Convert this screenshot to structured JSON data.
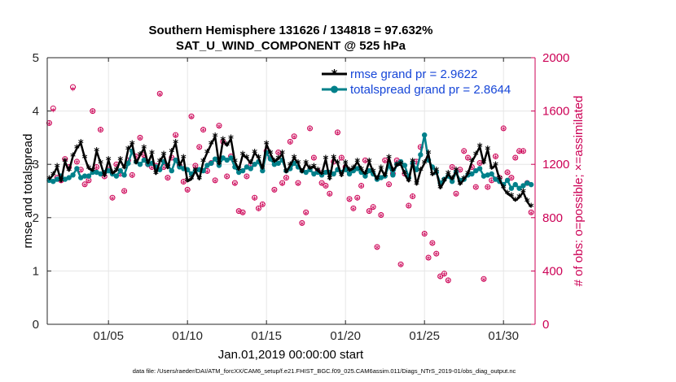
{
  "chart_data": {
    "type": "line",
    "title": "Southern Hemisphere 131626 / 134818 = 97.632%",
    "subtitle": "SAT_U_WIND_COMPONENT @ 525 hPa",
    "xlabel": "Jan.01,2019 00:00:00 start",
    "ylabel": "rmse and totalspread",
    "y2label": "# of obs: o=possible; ×=assimilated",
    "footer": "data file: /Users/raeder/DAI/ATM_forcXX/CAM6_setup/f.e21.FHIST_BGC.f09_025.CAM6assim.011/Diags_NTrS_2019-01/obs_diag_output.nc",
    "x_unit": "days since Jan.01,2019 00:00:00",
    "xlim": [
      0.125,
      31.0
    ],
    "ylim": [
      0,
      5
    ],
    "y2lim": [
      0,
      2000
    ],
    "x_ticks": [
      4,
      9,
      14,
      19,
      24,
      29
    ],
    "x_tick_labels": [
      "01/05",
      "01/10",
      "01/15",
      "01/20",
      "01/25",
      "01/30"
    ],
    "y_ticks": [
      0,
      1,
      2,
      3,
      4,
      5
    ],
    "y_tick_labels": [
      "0",
      "1",
      "2",
      "3",
      "4",
      "5"
    ],
    "y2_ticks": [
      0,
      400,
      800,
      1200,
      1600,
      2000
    ],
    "y2_tick_labels": [
      "0",
      "400",
      "800",
      "1200",
      "1600",
      "2000"
    ],
    "grid": true,
    "legend_position": "top-right",
    "colors": {
      "rmse": "#000000",
      "spread": "#00808a",
      "obs": "#cc0055",
      "legend_text": "#1646d8",
      "grid": "#e6e6e6",
      "axis": "#262626"
    },
    "x": [
      0.25,
      0.5,
      0.75,
      1.0,
      1.25,
      1.5,
      1.75,
      2.0,
      2.25,
      2.5,
      2.75,
      3.0,
      3.25,
      3.5,
      3.75,
      4.0,
      4.25,
      4.5,
      4.75,
      5.0,
      5.25,
      5.5,
      5.75,
      6.0,
      6.25,
      6.5,
      6.75,
      7.0,
      7.25,
      7.5,
      7.75,
      8.0,
      8.25,
      8.5,
      8.75,
      9.0,
      9.25,
      9.5,
      9.75,
      10.0,
      10.25,
      10.5,
      10.75,
      11.0,
      11.25,
      11.5,
      11.75,
      12.0,
      12.25,
      12.5,
      12.75,
      13.0,
      13.25,
      13.5,
      13.75,
      14.0,
      14.25,
      14.5,
      14.75,
      15.0,
      15.25,
      15.5,
      15.75,
      16.0,
      16.25,
      16.5,
      16.75,
      17.0,
      17.25,
      17.5,
      17.75,
      18.0,
      18.25,
      18.5,
      18.75,
      19.0,
      19.25,
      19.5,
      19.75,
      20.0,
      20.25,
      20.5,
      20.75,
      21.0,
      21.25,
      21.5,
      21.75,
      22.0,
      22.25,
      22.5,
      22.75,
      23.0,
      23.25,
      23.5,
      23.75,
      24.0,
      24.25,
      24.5,
      24.75,
      25.0,
      25.25,
      25.5,
      25.75,
      26.0,
      26.25,
      26.5,
      26.75,
      27.0,
      27.25,
      27.5,
      27.75,
      28.0,
      28.25,
      28.5,
      28.75,
      29.0,
      29.25,
      29.5,
      29.75,
      30.0,
      30.25,
      30.5,
      30.75
    ],
    "series": [
      {
        "name": "rmse grand pr = 2.9622",
        "axis": "left",
        "marker": "asterisk",
        "values": [
          2.72,
          2.8,
          2.95,
          2.68,
          3.05,
          2.88,
          3.15,
          3.3,
          3.4,
          3.12,
          2.92,
          2.88,
          3.25,
          3.02,
          2.78,
          3.08,
          2.83,
          2.88,
          3.08,
          2.93,
          3.28,
          3.38,
          3.02,
          3.17,
          3.3,
          3.02,
          3.2,
          2.82,
          3.05,
          3.18,
          2.93,
          3.23,
          3.4,
          2.98,
          3.12,
          2.68,
          2.72,
          2.88,
          2.72,
          3.05,
          3.22,
          3.38,
          3.52,
          3.0,
          3.45,
          3.35,
          3.48,
          3.05,
          2.9,
          3.18,
          3.12,
          3.02,
          3.22,
          3.12,
          2.92,
          3.38,
          3.2,
          3.05,
          3.1,
          3.2,
          2.85,
          2.98,
          3.12,
          3.02,
          2.85,
          3.02,
          2.92,
          2.95,
          2.88,
          2.82,
          3.1,
          2.72,
          3.12,
          3.02,
          2.78,
          3.02,
          2.88,
          2.92,
          3.05,
          2.9,
          2.82,
          3.05,
          2.86,
          2.72,
          2.92,
          2.78,
          3.12,
          2.88,
          2.98,
          3.0,
          2.82,
          2.68,
          3.05,
          2.62,
          2.88,
          3.02,
          3.2,
          2.8,
          2.88,
          2.55,
          2.68,
          2.82,
          2.72,
          2.88,
          2.62,
          2.72,
          2.82,
          3.05,
          3.18,
          3.33,
          3.02,
          3.28,
          2.92,
          2.98,
          2.72,
          2.55,
          2.45,
          2.4,
          2.32,
          2.38,
          2.48,
          2.3,
          2.2
        ]
      },
      {
        "name": "totalspread grand pr = 2.8644",
        "axis": "left",
        "marker": "circle",
        "values": [
          2.7,
          2.68,
          2.72,
          2.78,
          2.72,
          2.75,
          2.8,
          2.92,
          2.75,
          2.78,
          2.78,
          2.85,
          2.85,
          2.82,
          2.85,
          2.88,
          2.82,
          2.78,
          2.88,
          2.8,
          3.02,
          3.25,
          3.05,
          3.0,
          3.08,
          3.0,
          3.02,
          2.95,
          2.9,
          3.05,
          2.98,
          2.88,
          3.08,
          2.95,
          2.92,
          2.9,
          2.82,
          2.88,
          2.9,
          2.88,
          2.98,
          3.02,
          3.1,
          2.98,
          3.12,
          3.08,
          3.12,
          2.95,
          2.85,
          2.88,
          2.95,
          2.92,
          3.0,
          3.05,
          2.88,
          3.22,
          3.1,
          3.0,
          3.02,
          3.08,
          2.88,
          2.92,
          3.02,
          2.95,
          2.88,
          2.85,
          2.9,
          2.82,
          2.85,
          2.8,
          2.85,
          2.85,
          2.82,
          2.9,
          2.85,
          2.9,
          2.82,
          2.88,
          2.92,
          2.85,
          2.78,
          2.88,
          2.82,
          2.72,
          2.75,
          2.78,
          2.98,
          2.8,
          3.0,
          3.05,
          2.98,
          2.75,
          3.02,
          2.9,
          3.18,
          3.55,
          3.08,
          2.95,
          2.85,
          2.65,
          2.72,
          2.78,
          2.68,
          2.85,
          2.7,
          2.72,
          2.8,
          2.82,
          2.88,
          2.92,
          2.78,
          2.8,
          2.82,
          2.72,
          2.68,
          2.62,
          2.7,
          2.55,
          2.62,
          2.55,
          2.6,
          2.65,
          2.62
        ]
      },
      {
        "name": "possible",
        "axis": "right",
        "marker": "open-circle",
        "values": [
          1510,
          1620,
          1100,
          1080,
          1240,
          1180,
          1780,
          1220,
          1160,
          1050,
          1080,
          1600,
          1180,
          1460,
          1110,
          1160,
          950,
          1200,
          1130,
          1000,
          1230,
          1120,
          1260,
          1400,
          1270,
          1200,
          1180,
          1190,
          1730,
          1180,
          1100,
          1250,
          1420,
          1190,
          1070,
          1010,
          1560,
          1190,
          1330,
          1460,
          1150,
          1210,
          1080,
          1490,
          1370,
          1110,
          1260,
          1060,
          850,
          840,
          1110,
          1190,
          950,
          870,
          900,
          1300,
          1250,
          1010,
          1290,
          1060,
          1100,
          1370,
          1410,
          1060,
          760,
          840,
          1470,
          1250,
          1150,
          1060,
          1040,
          980,
          1220,
          1440,
          1250,
          1180,
          940,
          870,
          950,
          1040,
          1230,
          850,
          880,
          580,
          820,
          1230,
          1050,
          1130,
          1230,
          450,
          1130,
          890,
          960,
          1220,
          1330,
          680,
          500,
          610,
          530,
          360,
          380,
          330,
          1180,
          980,
          1160,
          1300,
          1250,
          1180,
          1030,
          1210,
          340,
          1030,
          1080,
          1260,
          1100,
          1470,
          1140,
          1100,
          1250,
          1300,
          1300,
          1060,
          840
        ]
      },
      {
        "name": "assimilated",
        "axis": "right",
        "marker": "asterisk",
        "values": [
          1500,
          1600,
          1090,
          1070,
          1230,
          1170,
          1760,
          1210,
          1150,
          1040,
          1070,
          1590,
          1170,
          1450,
          1100,
          1150,
          940,
          1190,
          1120,
          990,
          1220,
          1110,
          1250,
          1390,
          1260,
          1190,
          1170,
          1180,
          1720,
          1170,
          1090,
          1240,
          1410,
          1180,
          1060,
          1000,
          1550,
          1180,
          1320,
          1450,
          1140,
          1200,
          1070,
          1480,
          1360,
          1100,
          1250,
          1050,
          840,
          830,
          1100,
          1180,
          940,
          860,
          890,
          1290,
          1240,
          1000,
          1280,
          1050,
          1090,
          1360,
          1400,
          1050,
          750,
          830,
          1460,
          1240,
          1140,
          1050,
          1030,
          970,
          1210,
          1430,
          1240,
          1170,
          930,
          860,
          940,
          1030,
          1220,
          840,
          870,
          570,
          810,
          1220,
          1040,
          1120,
          1220,
          440,
          1120,
          880,
          950,
          1210,
          1320,
          670,
          490,
          600,
          520,
          350,
          370,
          320,
          1170,
          970,
          1150,
          1290,
          1240,
          1170,
          1020,
          1200,
          330,
          1020,
          1070,
          1250,
          1090,
          1460,
          1130,
          1090,
          1240,
          1290,
          1290,
          1050,
          830
        ]
      }
    ]
  }
}
